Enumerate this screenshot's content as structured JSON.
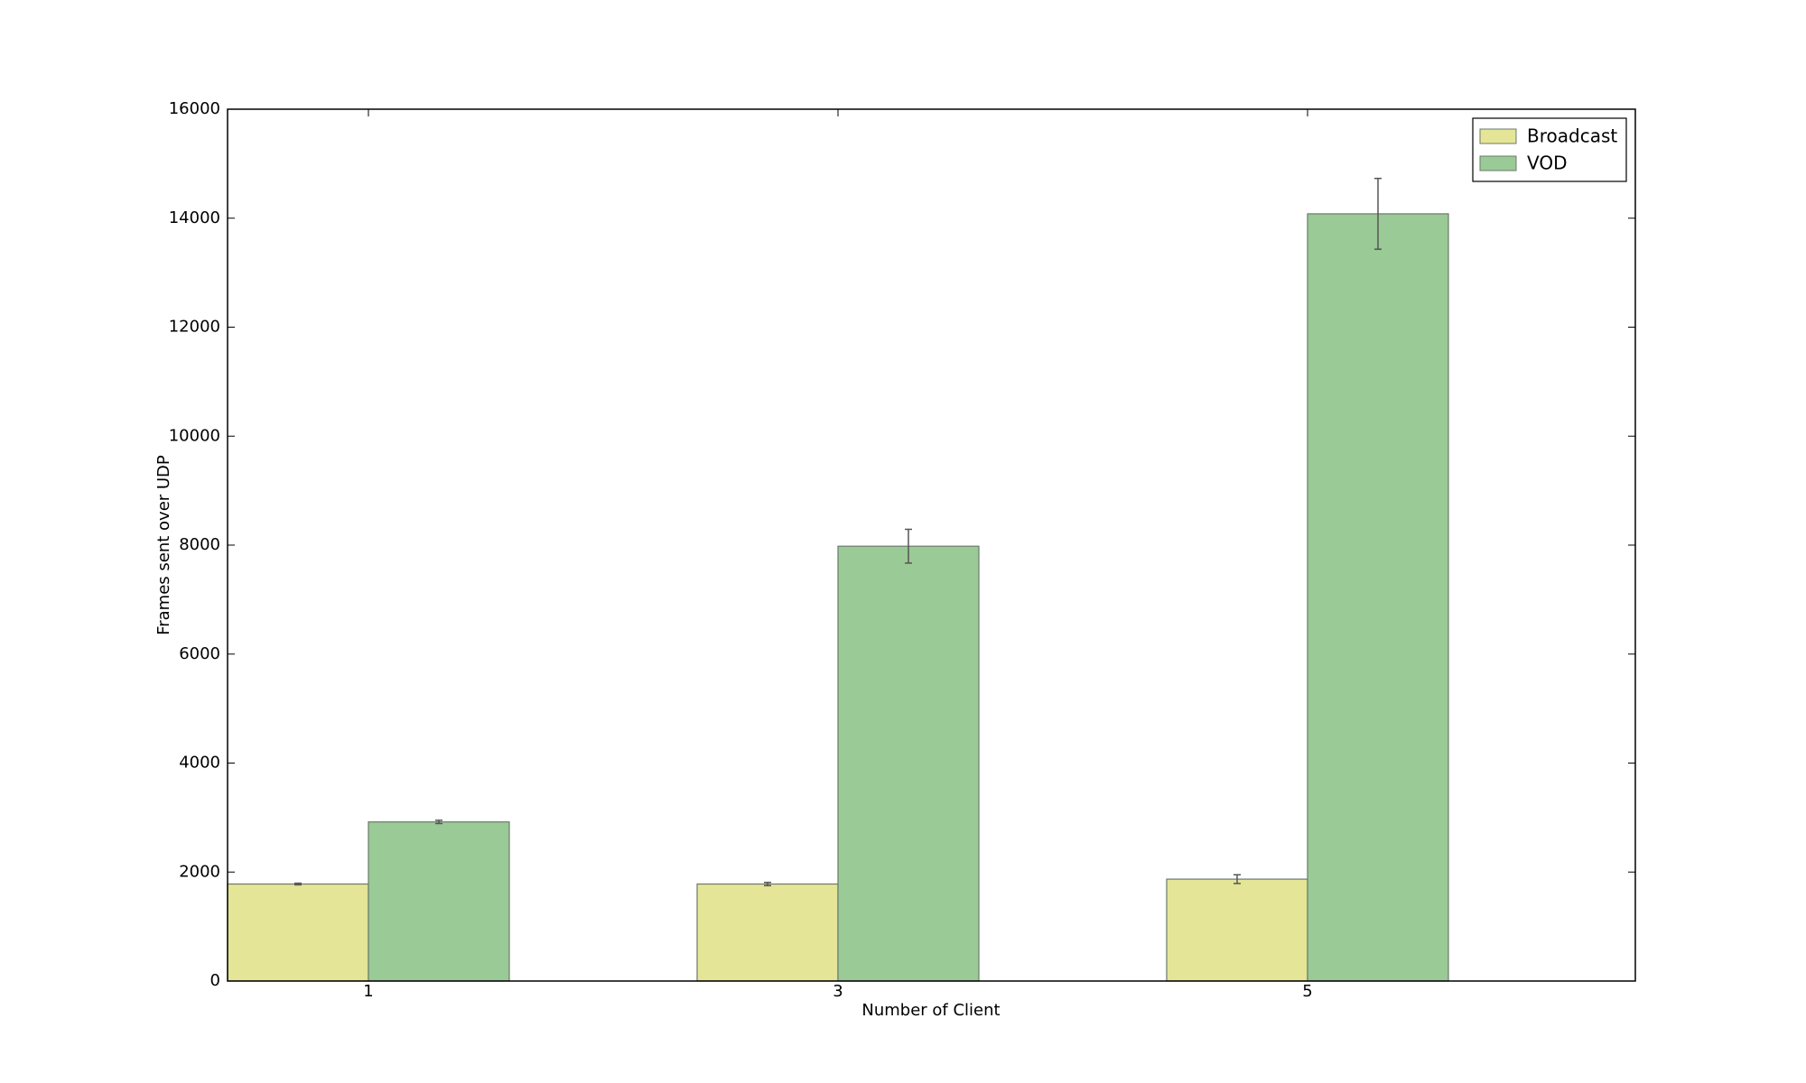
{
  "chart_data": {
    "type": "bar",
    "xlabel": "Number of Client",
    "ylabel": "Frames sent over UDP",
    "categories": [
      "1",
      "3",
      "5"
    ],
    "series": [
      {
        "name": "Broadcast",
        "color": "#e4e597",
        "values": [
          1780,
          1780,
          1870
        ],
        "errors": [
          15,
          30,
          80
        ]
      },
      {
        "name": "VOD",
        "color": "#9aca96",
        "values": [
          2920,
          7980,
          14080
        ],
        "errors": [
          30,
          310,
          650
        ]
      }
    ],
    "ylim": [
      0,
      16000
    ],
    "yticks": [
      0,
      2000,
      4000,
      6000,
      8000,
      10000,
      12000,
      14000,
      16000
    ],
    "legend": "upper right"
  }
}
